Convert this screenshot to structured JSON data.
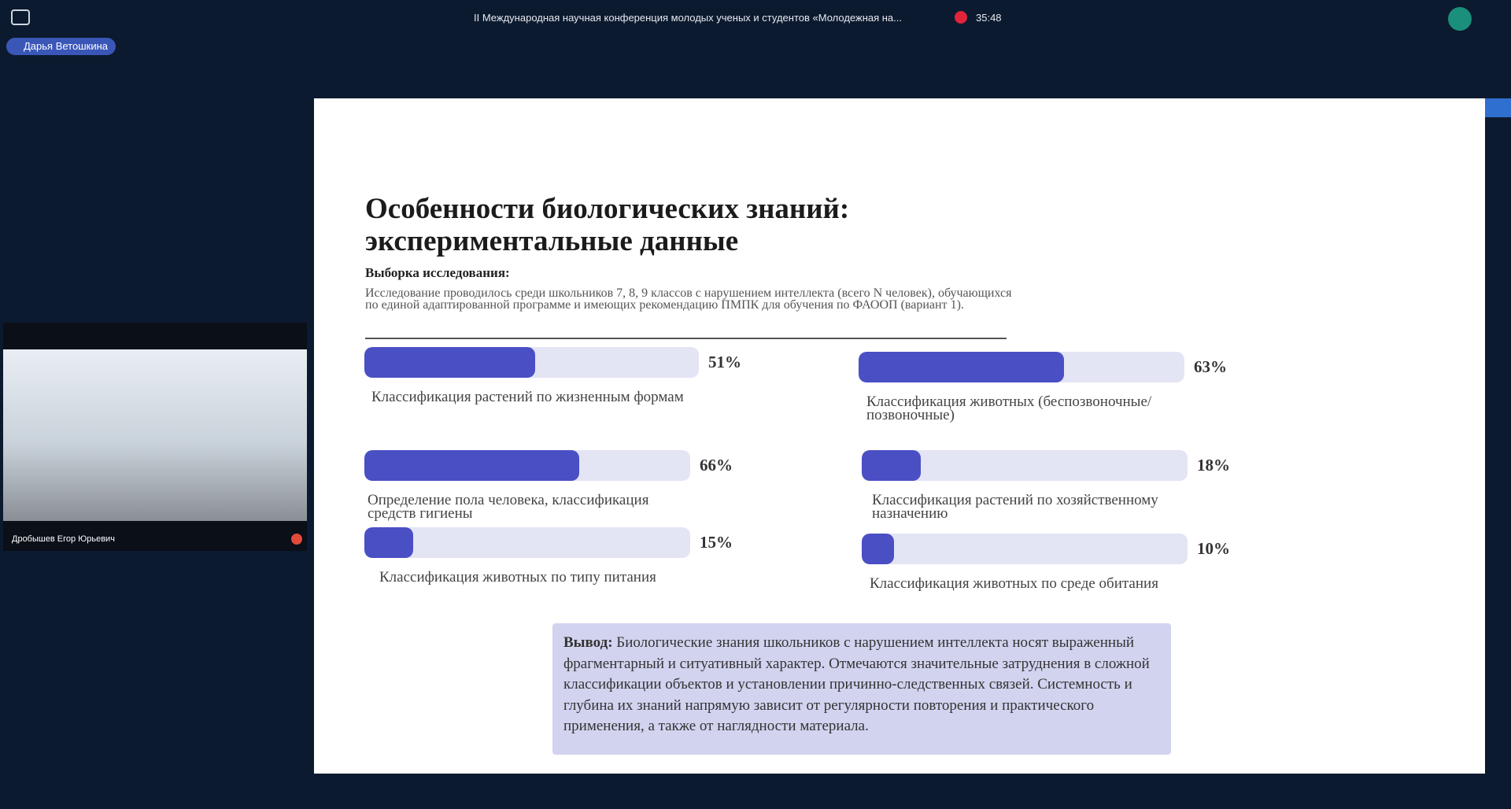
{
  "header": {
    "title": "II Международная научная конференция молодых ученых и студентов «Молодежная на...",
    "timer": "35:48"
  },
  "speaker": "Дарья Ветошкина",
  "video": {
    "name": "Дробышев Егор Юрьевич"
  },
  "slide": {
    "title_lines": [
      "Особенности биологических знаний:",
      "экспериментальные данные"
    ],
    "sample_heading": "Выборка исследования:",
    "sample_text": "Исследование проводилось среди школьников 7, 8, 9 классов с нарушением интеллекта (всего N человек), обучающихся по единой адаптированной программе и имеющих рекомендацию ПМПК для обучения по ФАООП (вариант 1).",
    "bars": [
      {
        "label": "Классификация растений по жизненным формам",
        "value": 51,
        "value_label": "51%"
      },
      {
        "label": "Классификация животных (беспозвоночные/позвоночные)",
        "value": 63,
        "value_label": "63%"
      },
      {
        "label": "Определение пола человека, классификация средств гигиены",
        "value": 66,
        "value_label": "66%"
      },
      {
        "label": "Классификация растений по хозяйственному назначению",
        "value": 18,
        "value_label": "18%"
      },
      {
        "label": "Классификация животных по типу питания",
        "value": 15,
        "value_label": "15%"
      },
      {
        "label": "Классификация животных по среде обитания",
        "value": 10,
        "value_label": "10%"
      }
    ],
    "conclusion_heading": "Вывод:",
    "conclusion_text": "Биологические знания школьников с нарушением интеллекта носят выраженный фрагментарный и ситуативный характер. Отмечаются значительные затруднения в сложной классификации объектов и установлении причинно-следственных связей. Системность и глубина их знаний напрямую зависит от регулярности повторения и практического применения, а также от наглядности материала."
  }
}
